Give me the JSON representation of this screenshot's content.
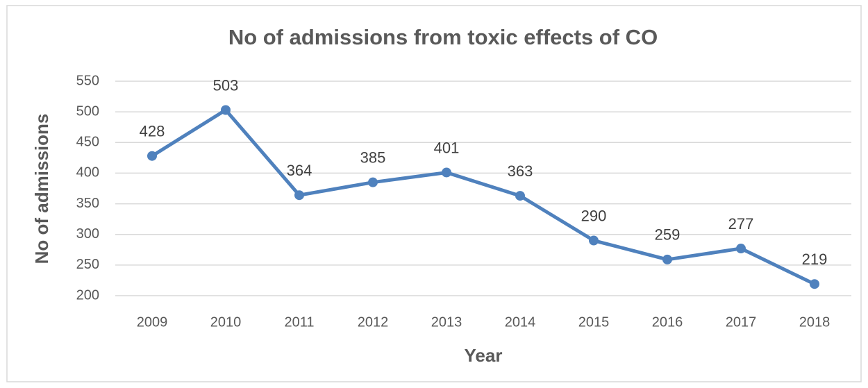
{
  "chart_data": {
    "type": "line",
    "title": "No of admissions from toxic effects of CO",
    "x_label": "Year",
    "y_label": "No of admissions",
    "categories": [
      "2009",
      "2010",
      "2011",
      "2012",
      "2013",
      "2014",
      "2015",
      "2016",
      "2017",
      "2018"
    ],
    "values": [
      428,
      503,
      364,
      385,
      401,
      363,
      290,
      259,
      277,
      219
    ],
    "color": "#4f81bd",
    "ylim": [
      200,
      550
    ],
    "yticks": [
      200,
      250,
      300,
      350,
      400,
      450,
      500,
      550
    ],
    "grid": true
  }
}
